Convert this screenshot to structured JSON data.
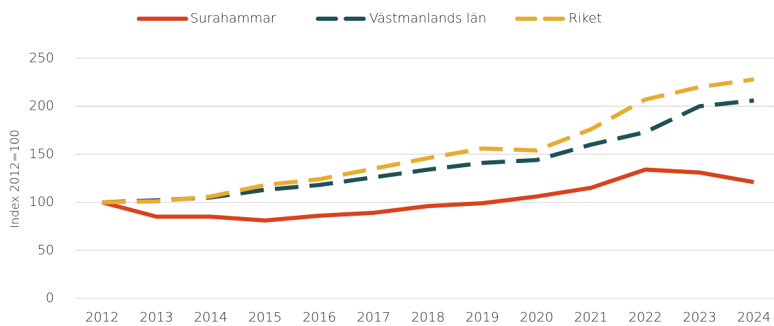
{
  "chart_data": {
    "type": "line",
    "ylabel": "Index 2012=100",
    "categories": [
      "2012",
      "2013",
      "2014",
      "2015",
      "2016",
      "2017",
      "2018",
      "2019",
      "2020",
      "2021",
      "2022",
      "2023",
      "2024"
    ],
    "series": [
      {
        "name": "Surahammar",
        "color": "#d9431c",
        "dash": "solid",
        "values": [
          100,
          85,
          85,
          81,
          86,
          89,
          96,
          99,
          106,
          115,
          134,
          131,
          121
        ]
      },
      {
        "name": "Västmanlands län",
        "color": "#1f5257",
        "dash": "dashed",
        "values": [
          100,
          102,
          105,
          113,
          118,
          126,
          134,
          141,
          144,
          160,
          173,
          200,
          206
        ]
      },
      {
        "name": "Riket",
        "color": "#e8ac2e",
        "dash": "dashed",
        "values": [
          100,
          101,
          106,
          118,
          124,
          135,
          146,
          156,
          154,
          176,
          207,
          220,
          228
        ]
      }
    ],
    "ylim": [
      0,
      250
    ],
    "yticks": [
      0,
      50,
      100,
      150,
      200,
      250
    ],
    "grid": true,
    "legend": "top"
  }
}
